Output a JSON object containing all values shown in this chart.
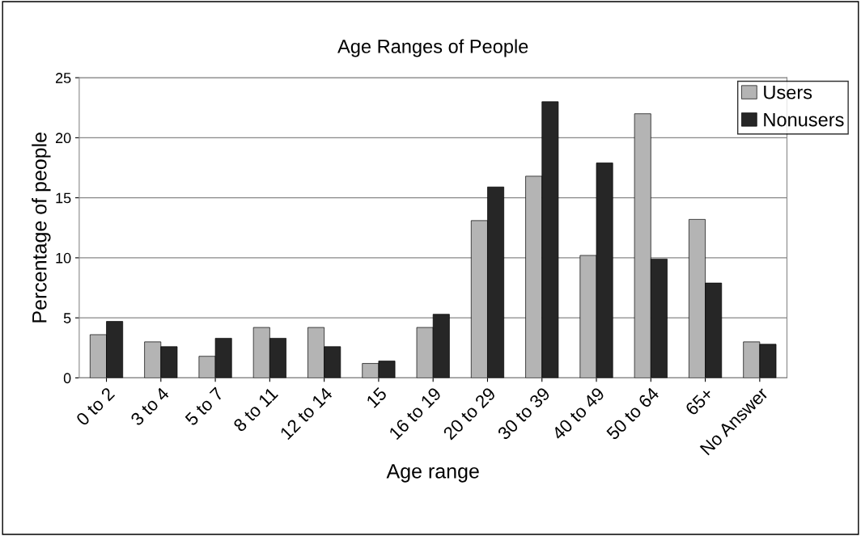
{
  "chart_data": {
    "type": "bar",
    "title": "Age Ranges of People",
    "xlabel": "Age range",
    "ylabel": "Percentage of people",
    "categories": [
      "0 to 2",
      "3 to 4",
      "5 to 7",
      "8 to 11",
      "12 to 14",
      "15",
      "16 to 19",
      "20 to 29",
      "30 to 39",
      "40 to 49",
      "50 to 64",
      "65+",
      "No Answer"
    ],
    "series": [
      {
        "name": "Users",
        "color": "#b4b4b4",
        "values": [
          3.6,
          3.0,
          1.8,
          4.2,
          4.2,
          1.2,
          4.2,
          13.1,
          16.8,
          10.2,
          22.0,
          13.2,
          3.0
        ]
      },
      {
        "name": "Nonusers",
        "color": "#262626",
        "values": [
          4.7,
          2.6,
          3.3,
          3.3,
          2.6,
          1.4,
          5.3,
          15.9,
          23.0,
          17.9,
          9.9,
          7.9,
          2.8
        ]
      }
    ],
    "ylim": [
      0,
      25
    ],
    "yticks": [
      0,
      5,
      10,
      15,
      20,
      25
    ],
    "grid": "y",
    "legend": "top right"
  }
}
